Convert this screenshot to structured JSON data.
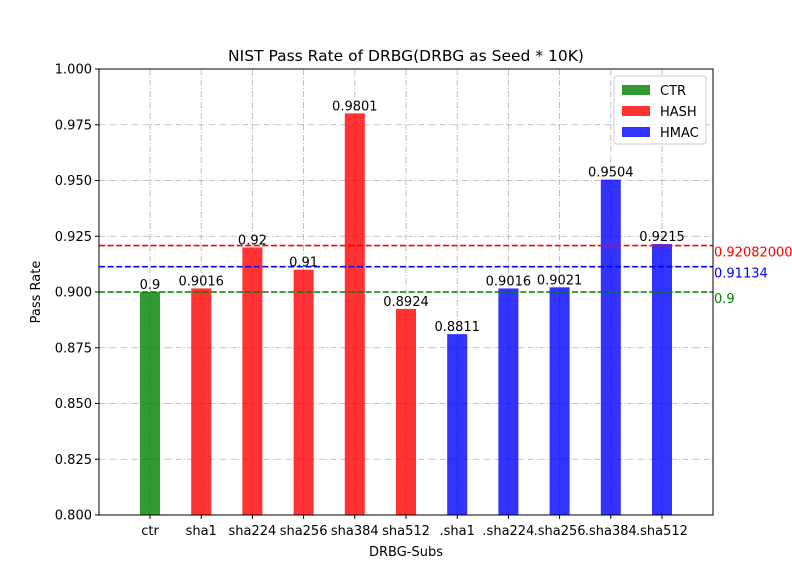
{
  "chart_data": {
    "type": "bar",
    "title": "NIST Pass Rate of DRBG(DRBG as Seed * 10K)",
    "xlabel": "DRBG-Subs",
    "ylabel": "Pass Rate",
    "ylim": [
      0.8,
      1.0
    ],
    "yticks": [
      "0.800",
      "0.825",
      "0.850",
      "0.875",
      "0.900",
      "0.925",
      "0.950",
      "0.975",
      "1.000"
    ],
    "grid": true,
    "legend_position": "top-right",
    "categories": [
      "ctr",
      "sha1",
      "sha224",
      "sha256",
      "sha384",
      "sha512",
      ".sha1",
      ".sha224",
      ".sha256",
      ".sha384",
      ".sha512"
    ],
    "values": [
      0.9,
      0.9016,
      0.92,
      0.91,
      0.9801,
      0.8924,
      0.8811,
      0.9016,
      0.9021,
      0.9504,
      0.9215
    ],
    "value_labels": [
      "0.9",
      "0.9016",
      "0.92",
      "0.91",
      "0.9801",
      "0.8924",
      "0.8811",
      "0.9016",
      "0.9021",
      "0.9504",
      "0.9215"
    ],
    "groups": [
      "CTR",
      "HASH",
      "HASH",
      "HASH",
      "HASH",
      "HASH",
      "HMAC",
      "HMAC",
      "HMAC",
      "HMAC",
      "HMAC"
    ],
    "series": [
      {
        "name": "CTR",
        "color": "#008000"
      },
      {
        "name": "HASH",
        "color": "#ff0000"
      },
      {
        "name": "HMAC",
        "color": "#0000ff"
      }
    ],
    "reference_lines": [
      {
        "value": 0.92082,
        "label": "0.92082000",
        "color": "#ff0000"
      },
      {
        "value": 0.91134,
        "label": "0.91134",
        "color": "#0000ff"
      },
      {
        "value": 0.9,
        "label": "0.9",
        "color": "#008000"
      }
    ]
  }
}
